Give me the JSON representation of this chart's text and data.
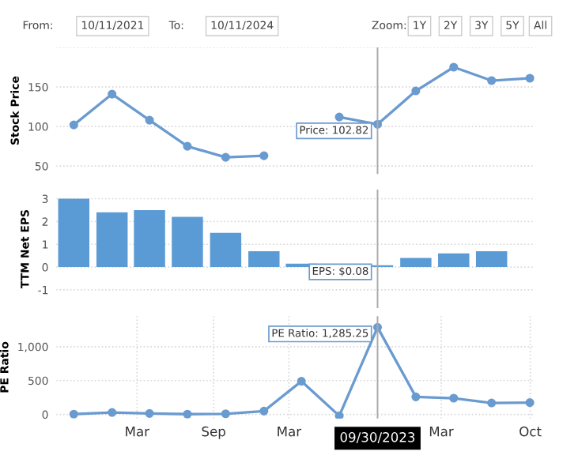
{
  "chart_data": [
    {
      "type": "line",
      "ylabel": "Stock Price",
      "x": [
        "2021-09-30",
        "2021-12-31",
        "2022-03-31",
        "2022-06-30",
        "2022-09-30",
        "2022-12-31",
        "2023-03-31",
        "2023-06-30",
        "2023-09-30",
        "2023-12-31",
        "2024-03-31",
        "2024-06-30",
        "2024-09-30"
      ],
      "series": [
        {
          "color": "#6a9bd0",
          "values": [
            102,
            141,
            108,
            75,
            61,
            63,
            null,
            112,
            102.82,
            145,
            175,
            158,
            161
          ]
        }
      ],
      "xlim": [
        "2021-08-19",
        "2024-10-12"
      ],
      "ylim": [
        40,
        200
      ],
      "yticks": [
        50,
        100,
        150,
        {
          "value": 200,
          "label": null
        }
      ],
      "tick_labels": "y",
      "grid": true,
      "marker": "circle",
      "ref_lines": [
        {
          "axis": "x",
          "value": "2023-09-30",
          "color": "#aaaaaa"
        }
      ],
      "annotations": [
        "From:",
        "10/11/2021",
        "To:",
        "10/11/2024",
        "Zoom:",
        "1Y",
        "2Y",
        "3Y",
        "5Y",
        "All",
        {
          "text": "Price: 102.82",
          "x": "2023-09-30",
          "y": 102.82
        }
      ]
    },
    {
      "type": "bar",
      "ylabel": "TTM Net EPS",
      "x": [
        "2021-09-30",
        "2021-12-31",
        "2022-03-31",
        "2022-06-30",
        "2022-09-30",
        "2022-12-31",
        "2023-03-31",
        "2023-06-30",
        "2023-09-30",
        "2023-12-31",
        "2024-03-31",
        "2024-06-30"
      ],
      "series": [
        {
          "color": "#5b9bd5",
          "values": [
            3.0,
            2.4,
            2.5,
            2.2,
            1.5,
            0.7,
            0.15,
            null,
            0.08,
            0.4,
            0.6,
            0.7
          ]
        }
      ],
      "xlim": [
        "2021-08-19",
        "2024-10-12"
      ],
      "ylim": [
        -1.8,
        3.4
      ],
      "yticks": [
        -1,
        0,
        1,
        2,
        3
      ],
      "tick_labels": "y",
      "grid": true,
      "ref_lines": [
        {
          "axis": "x",
          "value": "2023-09-30",
          "color": "#aaaaaa"
        }
      ],
      "annotations": [
        {
          "text": "EPS: $0.08",
          "x": "2023-09-30",
          "y": 0.08
        }
      ]
    },
    {
      "type": "line",
      "ylabel": "PE Ratio",
      "x": [
        "2021-09-30",
        "2021-12-31",
        "2022-03-31",
        "2022-06-30",
        "2022-09-30",
        "2022-12-31",
        "2023-03-31",
        "2023-06-30",
        "2023-09-30",
        "2023-12-31",
        "2024-03-31",
        "2024-06-30",
        "2024-09-30"
      ],
      "series": [
        {
          "color": "#6a9bd0",
          "values": [
            5,
            30,
            15,
            5,
            10,
            50,
            490,
            -20,
            1285.25,
            260,
            240,
            170,
            175
          ]
        }
      ],
      "xlim": [
        "2021-08-19",
        "2024-10-12"
      ],
      "ylim": [
        -60,
        1450
      ],
      "yticks": [
        0,
        500,
        {
          "value": 1000,
          "label": "1,000"
        }
      ],
      "xticks": [
        {
          "value": "2022-03-01",
          "label": "Mar"
        },
        {
          "value": "2022-09-01",
          "label": "Sep"
        },
        {
          "value": "2023-03-01",
          "label": "Mar"
        },
        {
          "value": "2024-03-01",
          "label": "Mar"
        },
        {
          "value": "2024-10-01",
          "label": "Oct"
        }
      ],
      "grid": true,
      "marker": "circle",
      "ref_lines": [
        {
          "axis": "x",
          "value": "2023-09-30",
          "color": "#aaaaaa",
          "label": "09/30/2023"
        }
      ],
      "annotations": [
        {
          "text": "PE Ratio: 1,285.25",
          "x": "2023-09-30",
          "y": 1285.25
        }
      ]
    }
  ]
}
